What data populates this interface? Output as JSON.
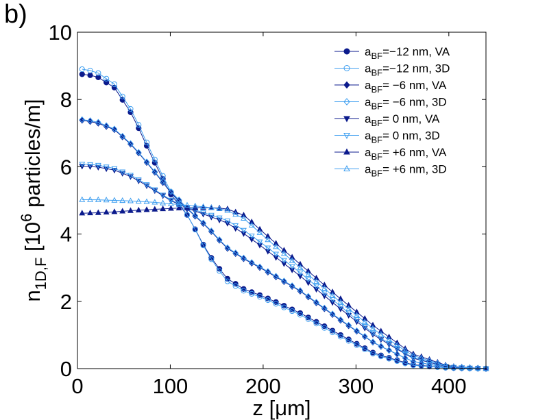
{
  "panel_label": "b)",
  "chart_data": {
    "type": "line",
    "title": "",
    "xlabel": "z [μm]",
    "ylabel": {
      "base": "n",
      "sub": "1D,F",
      "mid": " [10",
      "sup": "6",
      "tail": " particles/m]"
    },
    "xlim": [
      0,
      440
    ],
    "ylim": [
      0,
      10
    ],
    "xticks": [
      0,
      100,
      200,
      300,
      400
    ],
    "yticks": [
      0,
      2,
      4,
      6,
      8,
      10
    ],
    "grid": false,
    "legend_position": "top-right",
    "colors": {
      "dark": "#0b1a8c",
      "light": "#3d9ef0"
    },
    "legend": [
      {
        "text_a": "a",
        "sub": "BF",
        "text_b": "=−12 nm, VA"
      },
      {
        "text_a": "a",
        "sub": "BF",
        "text_b": "=−12 nm, 3D"
      },
      {
        "text_a": "a",
        "sub": "BF",
        "text_b": "=  −6 nm, VA"
      },
      {
        "text_a": "a",
        "sub": "BF",
        "text_b": "=  −6 nm, 3D"
      },
      {
        "text_a": "a",
        "sub": "BF",
        "text_b": "=    0 nm, VA"
      },
      {
        "text_a": "a",
        "sub": "BF",
        "text_b": "=    0 nm, 3D"
      },
      {
        "text_a": "a",
        "sub": "BF",
        "text_b": "= +6 nm, VA"
      },
      {
        "text_a": "a",
        "sub": "BF",
        "text_b": "= +6 nm, 3D"
      }
    ],
    "series": [
      {
        "name": "a_BF=-12 nm, VA",
        "color": "dark",
        "marker": "circle",
        "filled": true,
        "x": [
          5,
          20,
          40,
          60,
          80,
          100,
          120,
          140,
          160,
          180,
          200,
          240,
          280,
          320,
          360,
          400,
          440
        ],
        "y": [
          8.75,
          8.7,
          8.35,
          7.5,
          6.3,
          5.2,
          4.5,
          3.45,
          2.7,
          2.35,
          2.15,
          1.65,
          1.05,
          0.45,
          0.12,
          0.02,
          0.0
        ]
      },
      {
        "name": "a_BF=-12 nm, 3D",
        "color": "light",
        "marker": "circle",
        "filled": false,
        "x": [
          5,
          20,
          40,
          60,
          80,
          100,
          120,
          140,
          160,
          180,
          200,
          240,
          280,
          320,
          360,
          400,
          440
        ],
        "y": [
          8.9,
          8.83,
          8.45,
          7.6,
          6.4,
          5.28,
          4.5,
          3.42,
          2.62,
          2.3,
          2.1,
          1.6,
          1.0,
          0.42,
          0.1,
          0.02,
          0.0
        ]
      },
      {
        "name": "a_BF=-6 nm, VA",
        "color": "dark",
        "marker": "diamond",
        "filled": true,
        "x": [
          5,
          20,
          40,
          60,
          80,
          100,
          120,
          140,
          160,
          180,
          200,
          240,
          280,
          320,
          360,
          400,
          440
        ],
        "y": [
          7.38,
          7.32,
          7.1,
          6.6,
          5.95,
          5.25,
          4.7,
          4.2,
          3.6,
          3.25,
          2.95,
          2.3,
          1.5,
          0.75,
          0.22,
          0.03,
          0.0
        ]
      },
      {
        "name": "a_BF=-6 nm, 3D",
        "color": "light",
        "marker": "diamond",
        "filled": false,
        "x": [
          5,
          20,
          40,
          60,
          80,
          100,
          120,
          140,
          160,
          180,
          200,
          240,
          280,
          320,
          360,
          400,
          440
        ],
        "y": [
          7.4,
          7.35,
          7.12,
          6.62,
          5.97,
          5.28,
          4.72,
          4.22,
          3.62,
          3.27,
          2.97,
          2.32,
          1.52,
          0.76,
          0.22,
          0.03,
          0.0
        ]
      },
      {
        "name": "a_BF=0 nm, VA",
        "color": "dark",
        "marker": "triangle-down",
        "filled": true,
        "x": [
          5,
          20,
          40,
          60,
          80,
          100,
          120,
          140,
          160,
          180,
          200,
          240,
          280,
          320,
          360,
          400,
          440
        ],
        "y": [
          6.02,
          6.0,
          5.9,
          5.68,
          5.35,
          5.0,
          4.75,
          4.55,
          4.35,
          4.0,
          3.6,
          2.75,
          1.85,
          0.98,
          0.32,
          0.04,
          0.0
        ]
      },
      {
        "name": "a_BF=0 nm, 3D",
        "color": "light",
        "marker": "triangle-down",
        "filled": false,
        "x": [
          5,
          20,
          40,
          60,
          80,
          100,
          120,
          140,
          160,
          180,
          200,
          240,
          280,
          320,
          360,
          400,
          440
        ],
        "y": [
          6.08,
          6.06,
          5.95,
          5.72,
          5.38,
          5.02,
          4.77,
          4.6,
          4.42,
          4.1,
          3.7,
          2.85,
          1.93,
          1.02,
          0.34,
          0.05,
          0.0
        ]
      },
      {
        "name": "a_BF=+6 nm, VA",
        "color": "dark",
        "marker": "triangle-up",
        "filled": true,
        "x": [
          5,
          20,
          40,
          60,
          80,
          100,
          120,
          140,
          160,
          180,
          200,
          240,
          280,
          320,
          360,
          400,
          440
        ],
        "y": [
          4.62,
          4.63,
          4.66,
          4.7,
          4.73,
          4.76,
          4.78,
          4.79,
          4.76,
          4.55,
          4.05,
          3.1,
          2.15,
          1.25,
          0.45,
          0.07,
          0.0
        ]
      },
      {
        "name": "a_BF=+6 nm, 3D",
        "color": "light",
        "marker": "triangle-up",
        "filled": false,
        "x": [
          5,
          20,
          40,
          60,
          80,
          100,
          120,
          140,
          160,
          180,
          200,
          240,
          280,
          320,
          360,
          400,
          440
        ],
        "y": [
          5.02,
          5.02,
          5.0,
          4.98,
          4.95,
          4.9,
          4.85,
          4.8,
          4.72,
          4.45,
          3.95,
          3.0,
          2.05,
          1.15,
          0.4,
          0.06,
          0.0
        ]
      }
    ]
  }
}
